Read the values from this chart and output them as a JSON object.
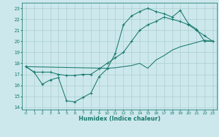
{
  "xlabel": "Humidex (Indice chaleur)",
  "bg_color": "#cce8ec",
  "grid_color": "#aacccc",
  "line_color": "#1a7a6e",
  "xlim": [
    -0.5,
    23.5
  ],
  "ylim": [
    13.8,
    23.5
  ],
  "xticks": [
    0,
    1,
    2,
    3,
    4,
    5,
    6,
    7,
    8,
    9,
    10,
    11,
    12,
    13,
    14,
    15,
    16,
    17,
    18,
    19,
    20,
    21,
    22,
    23
  ],
  "yticks": [
    14,
    15,
    16,
    17,
    18,
    19,
    20,
    21,
    22,
    23
  ],
  "line1_x": [
    0,
    1,
    2,
    3,
    4,
    5,
    6,
    7,
    8,
    9,
    10,
    11,
    12,
    13,
    14,
    15,
    16,
    17,
    18,
    19,
    20,
    21,
    22,
    23
  ],
  "line1_y": [
    17.7,
    17.2,
    17.2,
    17.2,
    17.0,
    16.9,
    16.9,
    17.0,
    17.0,
    17.5,
    18.0,
    18.5,
    19.0,
    20.0,
    21.0,
    21.5,
    21.8,
    22.2,
    22.0,
    21.8,
    21.5,
    21.0,
    20.5,
    20.0
  ],
  "line2_x": [
    0,
    1,
    2,
    3,
    4,
    5,
    6,
    7,
    8,
    9,
    10,
    11,
    12,
    13,
    14,
    15,
    16,
    17,
    18,
    19,
    20,
    21,
    22,
    23
  ],
  "line2_y": [
    17.7,
    17.2,
    16.1,
    16.5,
    16.7,
    14.6,
    14.5,
    14.9,
    15.3,
    16.8,
    17.5,
    18.9,
    21.5,
    22.3,
    22.7,
    23.0,
    22.7,
    22.5,
    22.2,
    22.8,
    21.6,
    21.1,
    20.0,
    20.0
  ],
  "line3_x": [
    0,
    10,
    11,
    12,
    13,
    14,
    15,
    16,
    17,
    18,
    19,
    20,
    21,
    22,
    23
  ],
  "line3_y": [
    17.7,
    17.55,
    17.6,
    17.7,
    17.8,
    18.0,
    17.55,
    18.3,
    18.7,
    19.2,
    19.5,
    19.7,
    19.9,
    20.1,
    20.0
  ]
}
